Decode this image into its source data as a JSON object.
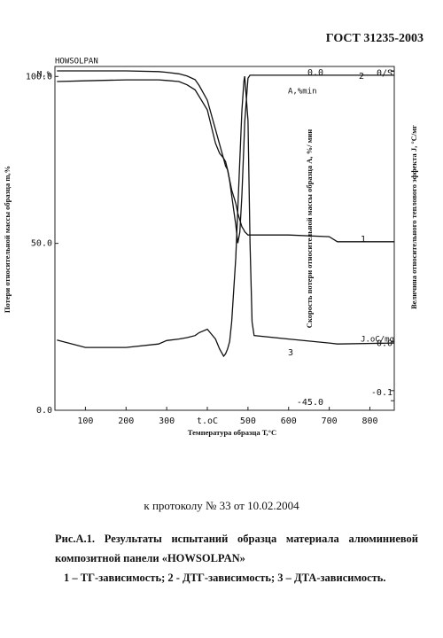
{
  "header": {
    "standard": "ГОСТ 31235-2003"
  },
  "chart_data": {
    "type": "line",
    "title": "HOWSOLPAN",
    "xlabel": "Температура образца Т,°C",
    "ylabel": "Потери относительной массы образца m,%",
    "y2label": "Скорость потери относительной массы образца А, %/ мин",
    "y3label": "Величина относительного теплового эффекта J, °C/мг",
    "y_unit": "M,%",
    "y2_unit": "A,%min",
    "y3_unit": "J.oC/mg",
    "x": [
      30,
      100,
      200,
      280,
      300,
      330,
      350,
      370,
      380,
      400,
      420,
      430,
      440,
      445,
      450,
      455,
      460,
      470,
      475,
      480,
      485,
      490,
      492,
      500,
      505,
      510,
      515,
      600,
      700,
      720,
      860
    ],
    "xlim": [
      25,
      860
    ],
    "xticks": [
      100,
      200,
      300,
      {
        "value": 400,
        "label": "t.oC"
      },
      500,
      600,
      700,
      800
    ],
    "ylim": [
      0,
      103
    ],
    "yticks": [
      {
        "value": 0,
        "label": "0.0"
      },
      {
        "value": 50,
        "label": "50.0"
      },
      {
        "value": 100,
        "label": "100.0"
      }
    ],
    "y2lim": [
      -46.3,
      0.6
    ],
    "y2ticks": [
      {
        "value": 0,
        "label": "0.0"
      },
      {
        "value": -45,
        "label": "-45.0"
      }
    ],
    "y3lim": [
      -0.14,
      0.56
    ],
    "y3ticks": [
      {
        "value": 0.55,
        "label": "0/S"
      },
      {
        "value": 0,
        "label": "0.0"
      },
      {
        "value": -0.1,
        "label": "-0.1"
      }
    ],
    "grid": false,
    "series": [
      {
        "name": "1",
        "color": "#111111",
        "axis": "y",
        "values": [
          98.5,
          98.7,
          99,
          99,
          98.8,
          98.5,
          97.5,
          96,
          94,
          90,
          80,
          77,
          75.5,
          74.5,
          72,
          69,
          66,
          62,
          59,
          57,
          55,
          54,
          53.5,
          52.5,
          52.5,
          52.5,
          52.5,
          52.5,
          52,
          50.5,
          50.5
        ]
      },
      {
        "name": "2",
        "color": "#111111",
        "axis": "y2",
        "values": [
          0,
          0,
          0,
          -0.1,
          -0.2,
          -0.4,
          -0.7,
          -1.2,
          -2,
          -4,
          -8,
          -10,
          -12,
          -13,
          -13.5,
          -15,
          -17,
          -21,
          -23.5,
          -22,
          -17,
          -10,
          -7,
          -1,
          -0.6,
          -0.6,
          -0.6,
          -0.6,
          -0.6,
          -0.6,
          -0.6
        ]
      },
      {
        "name": "3",
        "color": "#111111",
        "axis": "y3",
        "values": [
          0.003,
          -0.012,
          -0.012,
          -0.005,
          0.002,
          0.005,
          0.008,
          0.012,
          0.018,
          0.025,
          0.005,
          -0.015,
          -0.03,
          -0.025,
          -0.015,
          0,
          0.04,
          0.17,
          0.27,
          0.37,
          0.47,
          0.53,
          0.54,
          0.45,
          0.2,
          0.04,
          0.012,
          0.005,
          -0.003,
          -0.005,
          -0.003
        ]
      }
    ]
  },
  "footer": {
    "protocol": "к протоколу № 33 от 10.02.2004",
    "caption": "Рис.А.1. Результаты испытаний образца материала алюминиевой композитной панели «HOWSOLPAN»",
    "legend": "1 – ТГ-зависимость; 2 - ДТГ-зависимость; 3 – ДТА-зависимость."
  }
}
